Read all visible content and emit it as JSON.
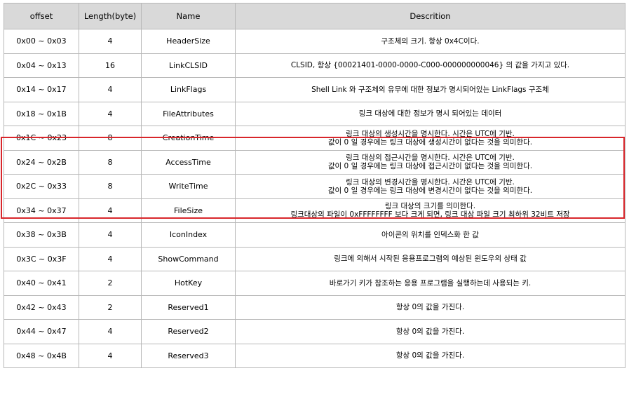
{
  "headers": [
    "offset",
    "Length(byte)",
    "Name",
    "Descrition"
  ],
  "rows": [
    {
      "offset": "0x00 ~ 0x03",
      "length": "4",
      "name": "HeaderSize",
      "desc": [
        "구조체의 크기. 항상 0x4C이다."
      ]
    },
    {
      "offset": "0x04 ~ 0x13",
      "length": "16",
      "name": "LinkCLSID",
      "desc": [
        "CLSID, 항상 {00021401-0000-0000-C000-000000000046} 의 값을 가지고 있다."
      ]
    },
    {
      "offset": "0x14 ~ 0x17",
      "length": "4",
      "name": "LinkFlags",
      "desc": [
        "Shell Link 와 구조체의 유무에 대한 정보가 명시되어있는 LinkFlags 구조체"
      ]
    },
    {
      "offset": "0x18 ~ 0x1B",
      "length": "4",
      "name": "FileAttributes",
      "desc": [
        "링크 대상에 대한 정보가 명시 되어있는 데이터"
      ]
    },
    {
      "offset": "0x1C ~ 0x23",
      "length": "8",
      "name": "CreationTime",
      "desc": [
        "링크 대상의 생성시간을 명시한다. 시간은 UTC에 기반.",
        "값이 0 일 경우에는 링크 대상에 생성시간이 없다는 것을 의미한다."
      ]
    },
    {
      "offset": "0x24 ~ 0x2B",
      "length": "8",
      "name": "AccessTime",
      "desc": [
        "링크 대상의 접근시간을 명시한다. 시간은 UTC에 기반.",
        "값이 0 일 경우에는 링크 대상에 접근시간이 없다는 것을 의미한다."
      ]
    },
    {
      "offset": "0x2C ~ 0x33",
      "length": "8",
      "name": "WriteTime",
      "desc": [
        "링크 대상의 변경시간을 명시한다. 시간은 UTC에 기반.",
        "값이 0 일 경우에는 링크 대상에 변경시간이 없다는 것을 의미한다."
      ]
    },
    {
      "offset": "0x34 ~ 0x37",
      "length": "4",
      "name": "FileSize",
      "desc": [
        "링크 대상의 크기를 의미한다.",
        "링크대상의 파일이 0xFFFFFFFF 보다 크게 되면, 링크 대상 파일 크기 최하위 32비트 저장"
      ]
    },
    {
      "offset": "0x38 ~ 0x3B",
      "length": "4",
      "name": "IconIndex",
      "desc": [
        "아이콘의 위치를 인덱스화 한 값"
      ]
    },
    {
      "offset": "0x3C ~ 0x3F",
      "length": "4",
      "name": "ShowCommand",
      "desc": [
        "링크에 의해서 시작된 응용프로그램의 예상된 윈도우의 상태 값"
      ]
    },
    {
      "offset": "0x40 ~ 0x41",
      "length": "2",
      "name": "HotKey",
      "desc": [
        "바로가기 키가 참조하는 응용 프로그램을 실행하는데 사용되는 키."
      ]
    },
    {
      "offset": "0x42 ~ 0x43",
      "length": "2",
      "name": "Reserved1",
      "desc": [
        "항상 0의 값을 가진다."
      ]
    },
    {
      "offset": "0x44 ~ 0x47",
      "length": "4",
      "name": "Reserved2",
      "desc": [
        "항상 0의 값을 가진다."
      ]
    },
    {
      "offset": "0x48 ~ 0x4B",
      "length": "4",
      "name": "Reserved3",
      "desc": [
        "항상 0의 값을 가진다."
      ]
    }
  ],
  "highlight_color": "#d8262b"
}
